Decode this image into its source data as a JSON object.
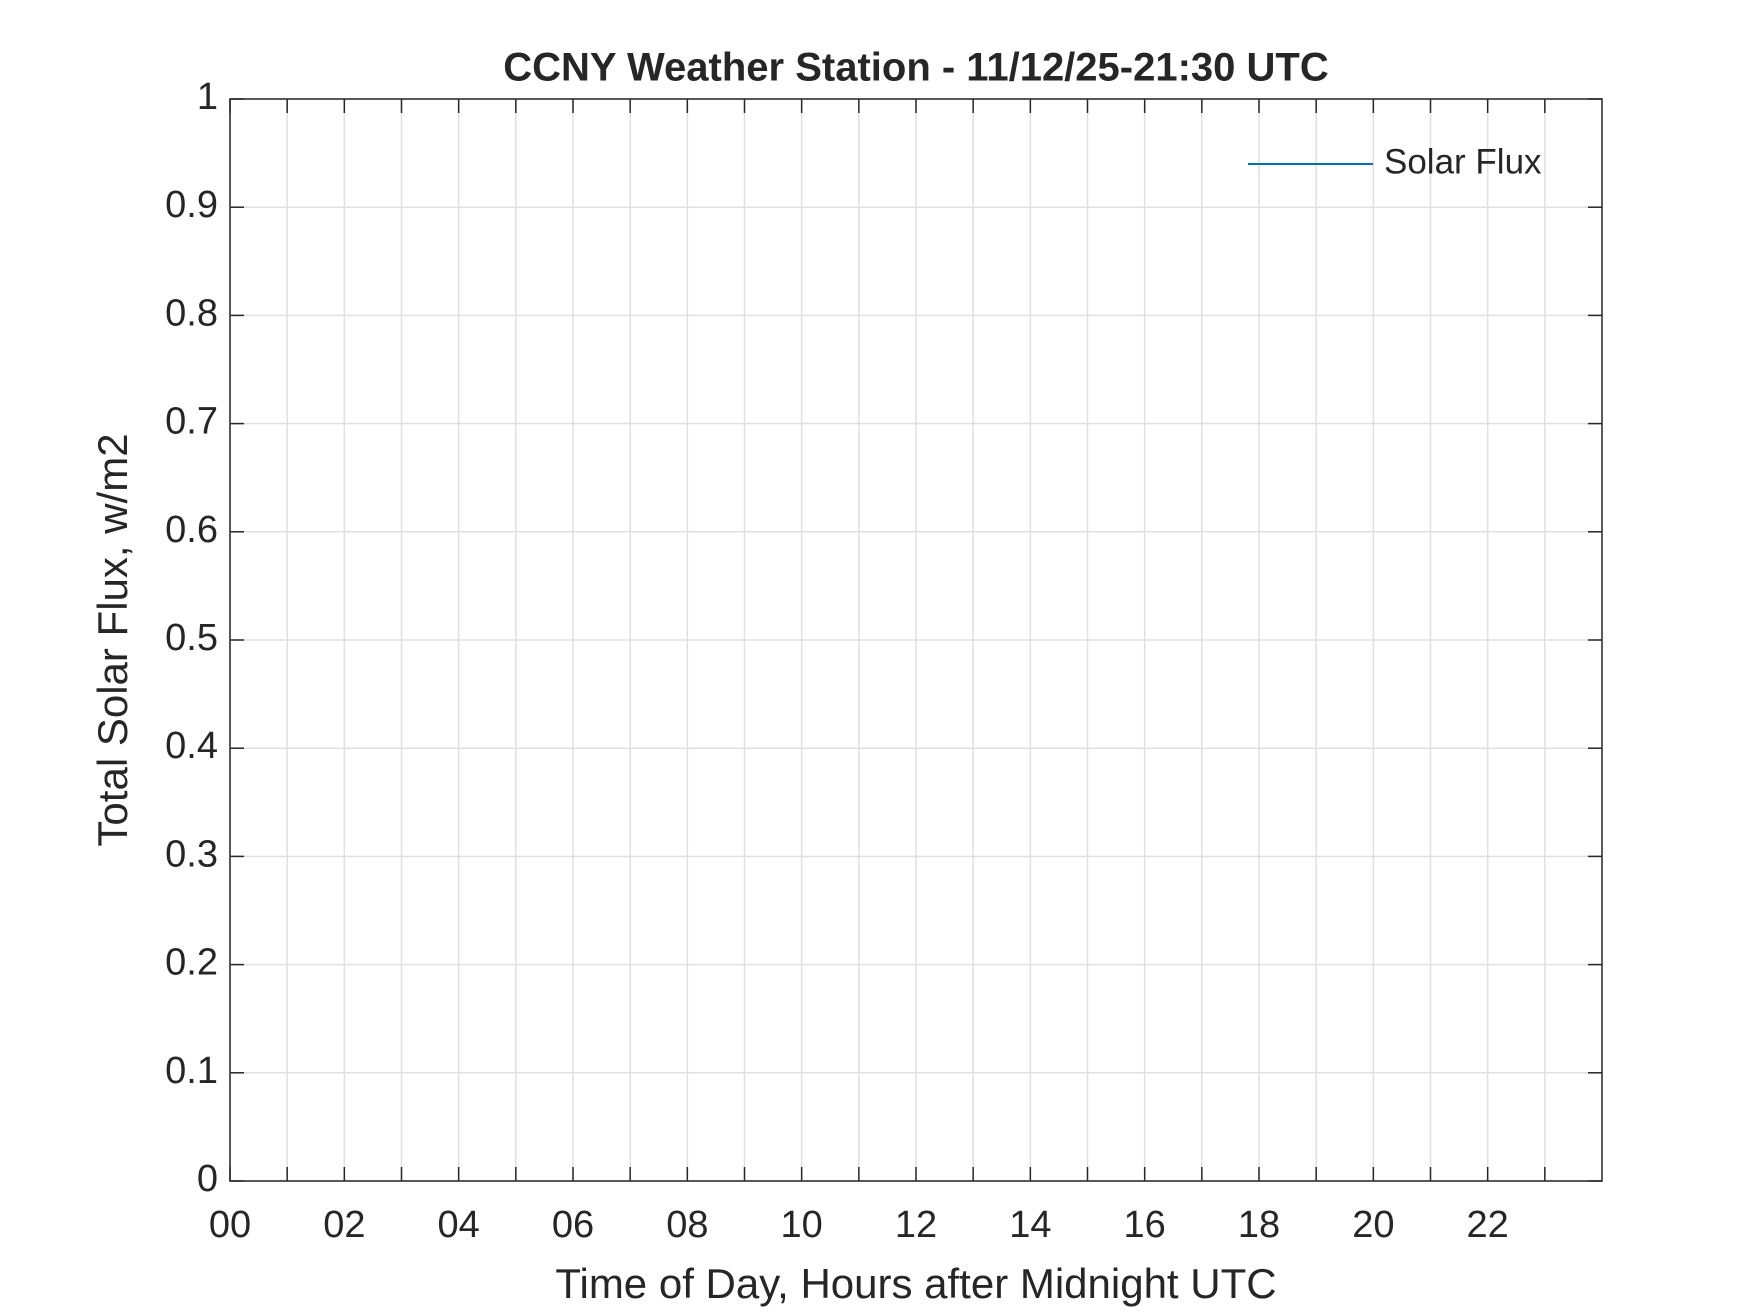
{
  "chart_data": {
    "type": "line",
    "title": "CCNY Weather Station -  11/12/25-21:30 UTC",
    "x_label": "Time of Day, Hours after Midnight UTC",
    "y_label": "Total Solar Flux, w/m2",
    "x": [],
    "series": [
      {
        "name": "Solar Flux",
        "color": "#0072bd",
        "values": []
      }
    ],
    "xlim": [
      0,
      24
    ],
    "xticks": [
      {
        "value": 0,
        "label": "00"
      },
      {
        "value": 2,
        "label": "02"
      },
      {
        "value": 4,
        "label": "04"
      },
      {
        "value": 6,
        "label": "06"
      },
      {
        "value": 8,
        "label": "08"
      },
      10,
      12,
      14,
      16,
      18,
      20,
      22
    ],
    "xminorticks": [
      1,
      3,
      5,
      7,
      9,
      11,
      13,
      15,
      17,
      19,
      21,
      23
    ],
    "ylim": [
      0,
      1
    ],
    "yticks": [
      0,
      0.1,
      0.2,
      0.3,
      0.4,
      0.5,
      0.6,
      0.7,
      0.8,
      0.9,
      1
    ],
    "grid": true,
    "legend": "top-right"
  }
}
